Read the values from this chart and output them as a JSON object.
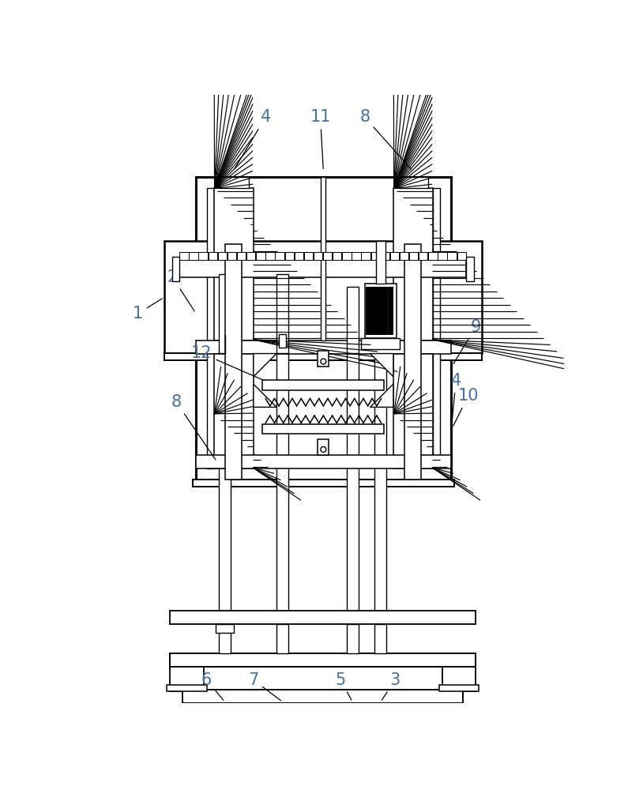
{
  "bg_color": "#ffffff",
  "line_color": "#000000",
  "label_color": "#4a6fa5",
  "fig_w": 7.95,
  "fig_h": 10.0,
  "dpi": 100
}
